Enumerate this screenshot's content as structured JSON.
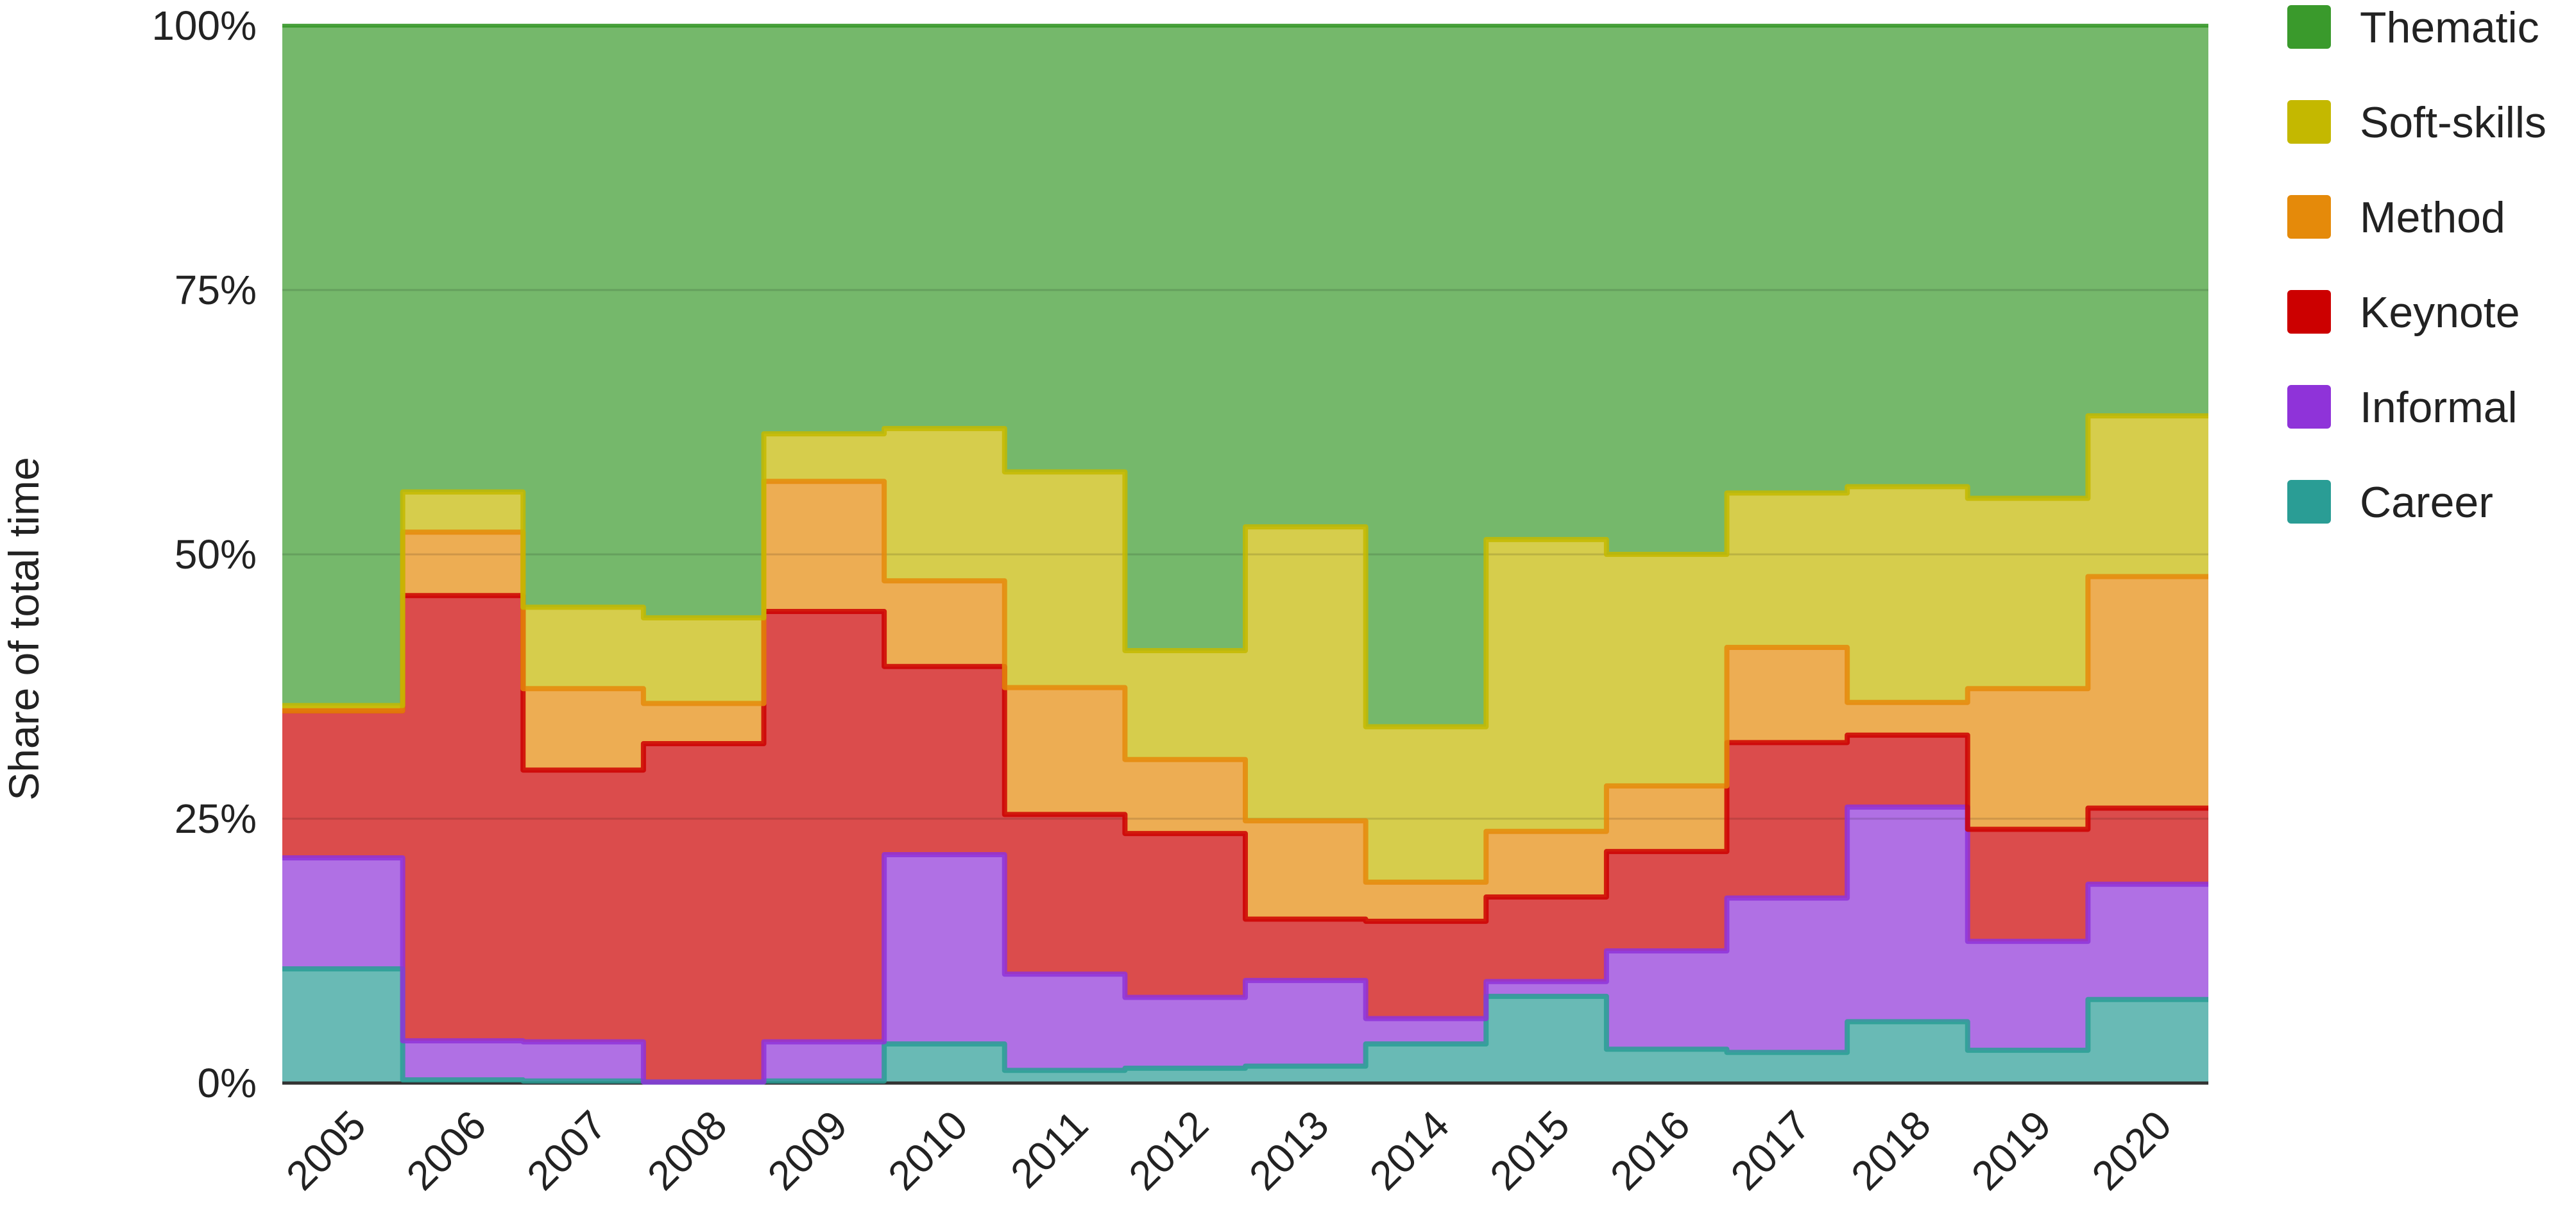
{
  "chart_data": {
    "type": "area",
    "step": true,
    "stacked": true,
    "normalized": true,
    "title": "",
    "xlabel": "",
    "ylabel": "Share of total time",
    "ylim": [
      0,
      100
    ],
    "y_ticks": [
      "0%",
      "25%",
      "50%",
      "75%",
      "100%"
    ],
    "grid": true,
    "legend_position": "right",
    "categories": [
      "2005",
      "2006",
      "2007",
      "2008",
      "2009",
      "2010",
      "2011",
      "2012",
      "2013",
      "2014",
      "2015",
      "2016",
      "2017",
      "2018",
      "2019",
      "2020"
    ],
    "series": [
      {
        "name": "Career",
        "color": "#2a9d95",
        "values": [
          10.8,
          0.3,
          0.2,
          0.1,
          0.2,
          3.7,
          1.2,
          1.4,
          1.6,
          3.7,
          8.2,
          3.2,
          2.9,
          5.8,
          3.1,
          7.9
        ]
      },
      {
        "name": "Informal",
        "color": "#8f33d9",
        "values": [
          10.5,
          3.7,
          3.7,
          0.0,
          3.7,
          17.9,
          9.1,
          6.7,
          8.1,
          2.4,
          1.4,
          9.3,
          14.6,
          20.3,
          10.3,
          10.9
        ]
      },
      {
        "name": "Keynote",
        "color": "#cc0000",
        "values": [
          13.9,
          42.1,
          25.7,
          32.0,
          40.7,
          17.8,
          15.1,
          15.5,
          5.8,
          9.2,
          8.0,
          9.4,
          14.7,
          6.8,
          10.6,
          7.2
        ]
      },
      {
        "name": "Method",
        "color": "#e58a0a",
        "values": [
          0.0,
          6.0,
          7.7,
          3.8,
          12.3,
          8.1,
          12.0,
          7.0,
          9.3,
          3.7,
          6.2,
          6.2,
          9.0,
          3.1,
          13.3,
          21.9
        ]
      },
      {
        "name": "Soft-skills",
        "color": "#c4b800",
        "values": [
          0.5,
          3.8,
          7.7,
          8.1,
          4.5,
          14.4,
          20.4,
          10.3,
          27.8,
          14.7,
          27.6,
          21.9,
          14.6,
          20.4,
          18.0,
          15.2
        ]
      },
      {
        "name": "Thematic",
        "color": "#3a9a2c",
        "values": [
          64.3,
          44.1,
          55.0,
          56.0,
          38.6,
          38.1,
          42.2,
          59.1,
          47.4,
          66.3,
          48.6,
          50.0,
          44.2,
          43.6,
          44.7,
          36.9
        ]
      }
    ],
    "legend_order": [
      "Thematic",
      "Soft-skills",
      "Method",
      "Keynote",
      "Informal",
      "Career"
    ]
  }
}
